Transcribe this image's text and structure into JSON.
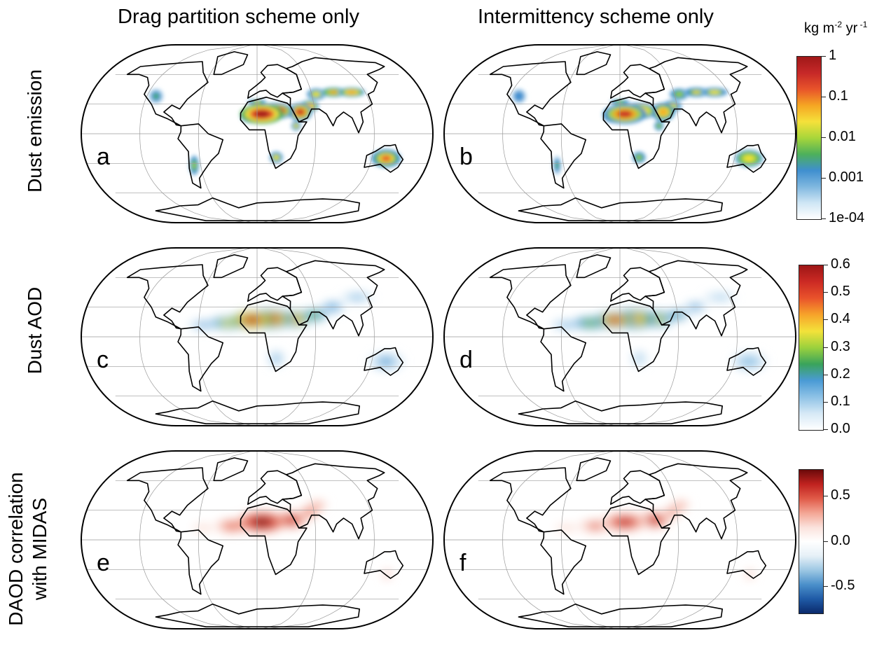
{
  "column_titles": [
    "Drag partition scheme only",
    "Intermittency scheme only"
  ],
  "row_titles": [
    "Dust emission",
    "Dust AOD",
    "DAOD correlation with MIDAS"
  ],
  "row_titles_lines": [
    [
      "Dust emission"
    ],
    [
      "Dust AOD"
    ],
    [
      "DAOD correlation",
      "with MIDAS"
    ]
  ],
  "panels": [
    {
      "letter": "a",
      "row": 0,
      "col": 0,
      "variable": "Dust emission",
      "scheme": "Drag partition scheme only"
    },
    {
      "letter": "b",
      "row": 0,
      "col": 1,
      "variable": "Dust emission",
      "scheme": "Intermittency scheme only"
    },
    {
      "letter": "c",
      "row": 1,
      "col": 0,
      "variable": "Dust AOD",
      "scheme": "Drag partition scheme only"
    },
    {
      "letter": "d",
      "row": 1,
      "col": 1,
      "variable": "Dust AOD",
      "scheme": "Intermittency scheme only"
    },
    {
      "letter": "e",
      "row": 2,
      "col": 0,
      "variable": "DAOD correlation with MIDAS",
      "scheme": "Drag partition scheme only"
    },
    {
      "letter": "f",
      "row": 2,
      "col": 1,
      "variable": "DAOD correlation with MIDAS",
      "scheme": "Intermittency scheme only"
    }
  ],
  "colorbars": [
    {
      "id": "emission",
      "units": {
        "base": "kg m",
        "exp1": "-2",
        "mid": " yr",
        "exp2": " -1"
      },
      "scale": "log",
      "range": [
        0.0001,
        1
      ],
      "ticks": [
        "1",
        "0.1",
        "0.01",
        "0.001",
        "1e-04"
      ],
      "colors": [
        "#ffffff",
        "#cfe6f5",
        "#7fb7df",
        "#3f8fcf",
        "#4db05a",
        "#a8d63a",
        "#f5e13a",
        "#f5a623",
        "#e8542a",
        "#c62828",
        "#a01818"
      ]
    },
    {
      "id": "aod",
      "scale": "linear",
      "range": [
        0.0,
        0.6
      ],
      "ticks": [
        "0.6",
        "0.5",
        "0.4",
        "0.3",
        "0.2",
        "0.1",
        "0.0"
      ],
      "colors": [
        "#ffffff",
        "#d6e9f6",
        "#8ec2e6",
        "#4a9bd5",
        "#3aa35b",
        "#9bd13d",
        "#f3e23a",
        "#f7a42a",
        "#e9532b",
        "#cc2a24",
        "#9d1616"
      ]
    },
    {
      "id": "correlation",
      "scale": "linear",
      "range": [
        -0.8,
        0.8
      ],
      "ticks": [
        "0.5",
        "0.0",
        "-0.5"
      ],
      "colors": [
        "#0b2a6b",
        "#1f5aa6",
        "#4a8fca",
        "#9cc7e3",
        "#e6f0f7",
        "#ffffff",
        "#fbe2dc",
        "#f3a594",
        "#e05a48",
        "#c0221f",
        "#6b0a0a"
      ]
    }
  ],
  "map": {
    "projection": "Robinson",
    "land_outline_color": "#000000",
    "graticule_color": "#9a9a9a"
  }
}
